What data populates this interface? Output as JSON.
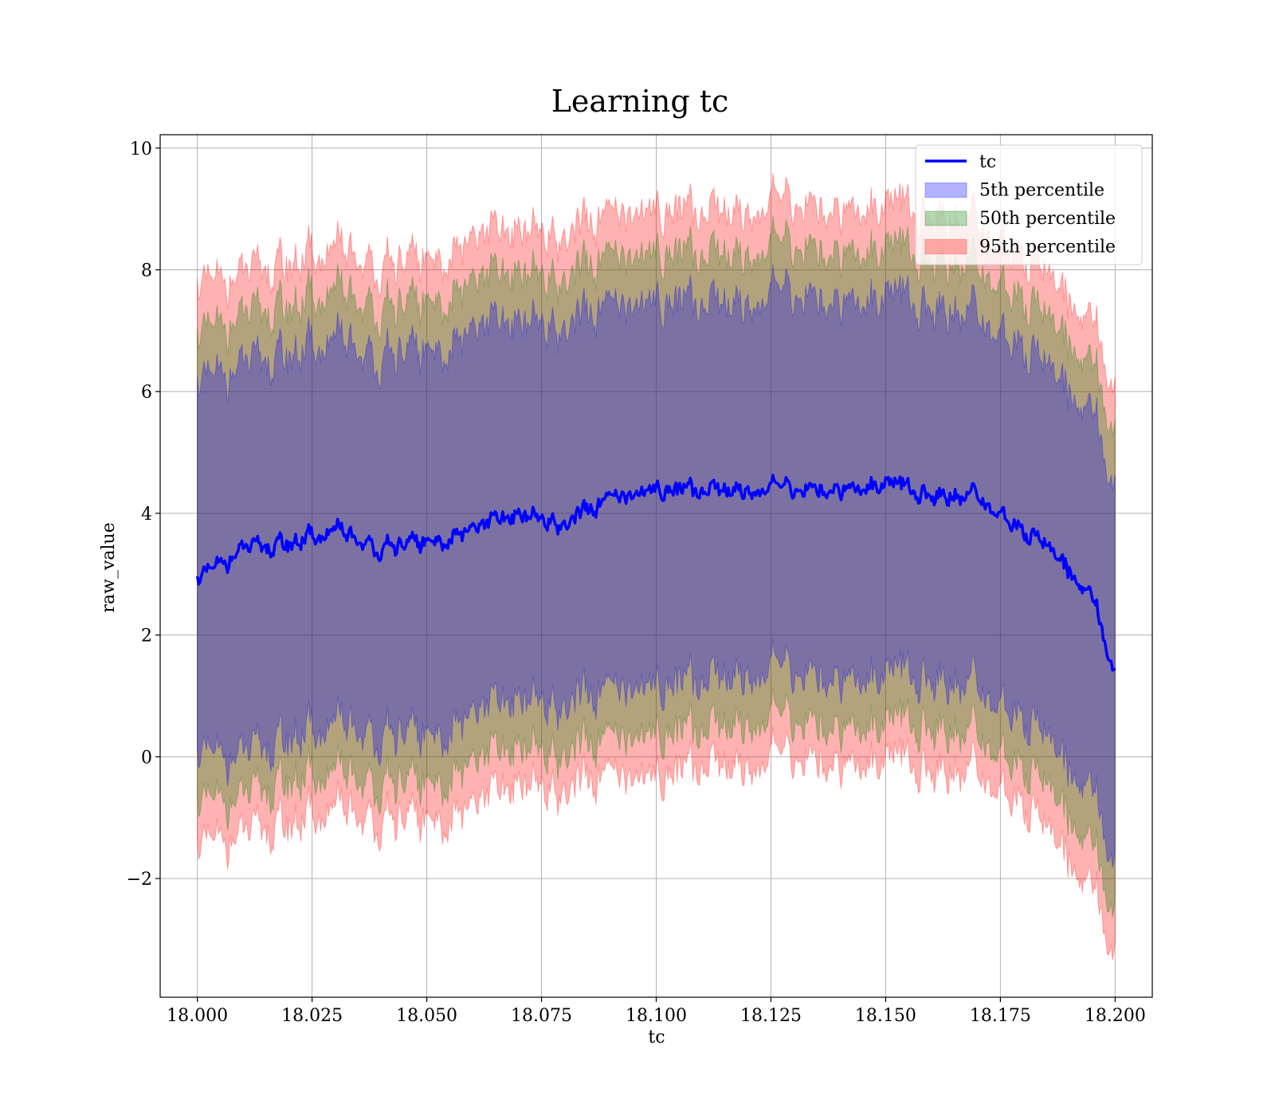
{
  "chart_data": {
    "type": "area",
    "title": "Learning tc",
    "xlabel": "tc",
    "ylabel": "raw_value",
    "xlim": [
      17.9919,
      18.2081
    ],
    "ylim": [
      -3.95,
      10.22
    ],
    "x_ticks": [
      18.0,
      18.025,
      18.05,
      18.075,
      18.1,
      18.125,
      18.15,
      18.175,
      18.2
    ],
    "x_tick_labels": [
      "18.000",
      "18.025",
      "18.050",
      "18.075",
      "18.100",
      "18.125",
      "18.150",
      "18.175",
      "18.200"
    ],
    "y_ticks": [
      -2,
      0,
      2,
      4,
      6,
      8,
      10
    ],
    "y_tick_labels": [
      "−2",
      "0",
      "2",
      "4",
      "6",
      "8",
      "10"
    ],
    "grid": true,
    "legend_position": "top-right",
    "x": [
      18.0,
      18.01,
      18.02,
      18.03,
      18.04,
      18.05,
      18.06,
      18.07,
      18.08,
      18.09,
      18.1,
      18.11,
      18.12,
      18.13,
      18.14,
      18.15,
      18.16,
      18.17,
      18.175,
      18.18,
      18.185,
      18.19,
      18.195,
      18.2
    ],
    "series": [
      {
        "name": "tc",
        "kind": "line",
        "color": "#0000ff",
        "values": [
          2.9,
          3.4,
          3.5,
          3.7,
          3.4,
          3.5,
          3.7,
          4.0,
          3.8,
          4.2,
          4.4,
          4.4,
          4.4,
          4.4,
          4.4,
          4.5,
          4.3,
          4.3,
          4.0,
          3.7,
          3.5,
          3.1,
          2.6,
          1.35
        ]
      },
      {
        "name": "5th percentile",
        "kind": "band",
        "color": "#0000ff",
        "lower": [
          0.0,
          0.0,
          0.3,
          0.5,
          0.3,
          0.3,
          0.6,
          1.0,
          0.8,
          1.0,
          1.2,
          1.3,
          1.4,
          1.4,
          1.3,
          1.4,
          1.3,
          1.2,
          0.9,
          0.6,
          0.4,
          -0.1,
          -0.6,
          -1.8
        ],
        "upper": [
          6.1,
          6.4,
          6.6,
          6.8,
          6.5,
          6.6,
          6.9,
          7.2,
          7.0,
          7.3,
          7.5,
          7.5,
          7.5,
          7.6,
          7.5,
          7.6,
          7.4,
          7.3,
          7.0,
          6.7,
          6.5,
          6.1,
          5.6,
          4.4
        ]
      },
      {
        "name": "50th percentile",
        "kind": "band",
        "color": "#008000",
        "lower": [
          -0.8,
          -0.7,
          -0.4,
          -0.3,
          -0.5,
          -0.5,
          -0.2,
          0.2,
          0.0,
          0.2,
          0.4,
          0.5,
          0.6,
          0.6,
          0.5,
          0.6,
          0.5,
          0.4,
          0.1,
          -0.2,
          -0.4,
          -0.9,
          -1.5,
          -2.6
        ],
        "upper": [
          6.9,
          7.2,
          7.4,
          7.6,
          7.3,
          7.4,
          7.7,
          8.0,
          7.8,
          8.1,
          8.3,
          8.3,
          8.3,
          8.4,
          8.3,
          8.4,
          8.2,
          8.1,
          7.8,
          7.5,
          7.3,
          6.9,
          6.4,
          5.3
        ]
      },
      {
        "name": "95th percentile",
        "kind": "band",
        "color": "#ff0000",
        "lower": [
          -1.5,
          -1.3,
          -1.1,
          -0.9,
          -1.1,
          -1.1,
          -0.9,
          -0.4,
          -0.6,
          -0.4,
          -0.3,
          -0.1,
          -0.1,
          0.0,
          -0.1,
          0.0,
          -0.2,
          -0.2,
          -0.5,
          -0.8,
          -1.1,
          -1.6,
          -2.2,
          -3.3
        ],
        "upper": [
          7.7,
          7.9,
          8.1,
          8.3,
          8.0,
          8.1,
          8.4,
          8.7,
          8.5,
          8.8,
          9.0,
          9.0,
          9.0,
          9.1,
          9.0,
          9.1,
          8.9,
          8.8,
          8.5,
          8.2,
          8.0,
          7.6,
          7.1,
          6.0
        ]
      }
    ]
  }
}
